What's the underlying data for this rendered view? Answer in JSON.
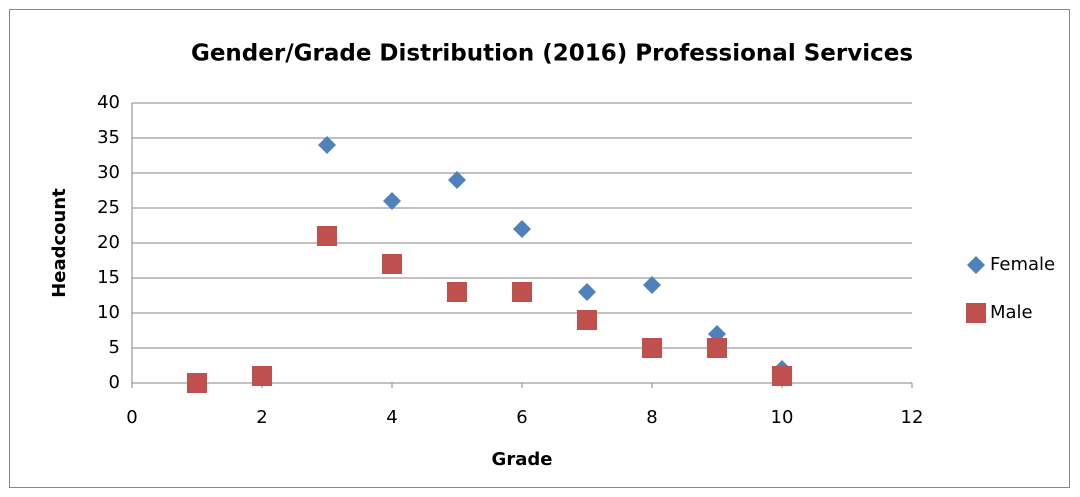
{
  "chart_data": {
    "type": "scatter",
    "title": "Gender/Grade Distribution (2016) Professional Services",
    "xlabel": "Grade",
    "ylabel": "Headcount",
    "xlim": [
      0,
      12
    ],
    "xticks": [
      0,
      2,
      4,
      6,
      8,
      10,
      12
    ],
    "ylim": [
      0,
      40
    ],
    "yticks": [
      0,
      5,
      10,
      15,
      20,
      25,
      30,
      35,
      40
    ],
    "grid": true,
    "legend": "right",
    "series": [
      {
        "name": "Female",
        "color": "#4f81bd",
        "marker": "diamond",
        "x": [
          3,
          4,
          5,
          6,
          7,
          8,
          9,
          10
        ],
        "values": [
          34,
          26,
          29,
          22,
          13,
          14,
          7,
          2
        ]
      },
      {
        "name": "Male",
        "color": "#c0504d",
        "marker": "square",
        "x": [
          1,
          2,
          3,
          4,
          5,
          6,
          7,
          8,
          9,
          10
        ],
        "values": [
          0,
          1,
          21,
          17,
          13,
          13,
          9,
          5,
          5,
          1
        ]
      }
    ]
  }
}
